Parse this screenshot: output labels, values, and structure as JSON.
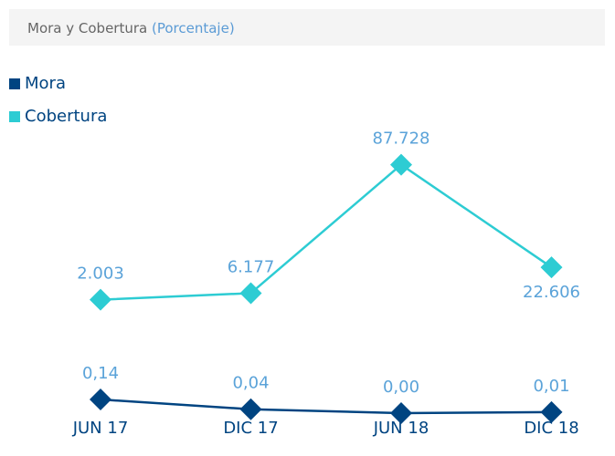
{
  "chart_data": {
    "type": "line",
    "title": "Mora y Cobertura",
    "subtitle": "(Porcentaje)",
    "categories": [
      "JUN 17",
      "DIC 17",
      "JUN 18",
      "DIC 18"
    ],
    "series": [
      {
        "name": "Mora",
        "color": "#004481",
        "axis": "y2",
        "values": [
          0.14,
          0.04,
          0,
          0.01
        ],
        "value_labels": [
          "0,14",
          "0,04",
          "0,00",
          "0,01"
        ]
      },
      {
        "name": "Cobertura",
        "color": "#2dccd3",
        "values": [
          2003,
          6177,
          87728,
          22606
        ],
        "value_labels": [
          "2.003",
          "6.177",
          "87.728",
          "22.606"
        ]
      }
    ],
    "ylim": [
      -70000,
      100000
    ],
    "y2lim": [
      0,
      2.75
    ],
    "legend": "top-left",
    "grid": false
  }
}
